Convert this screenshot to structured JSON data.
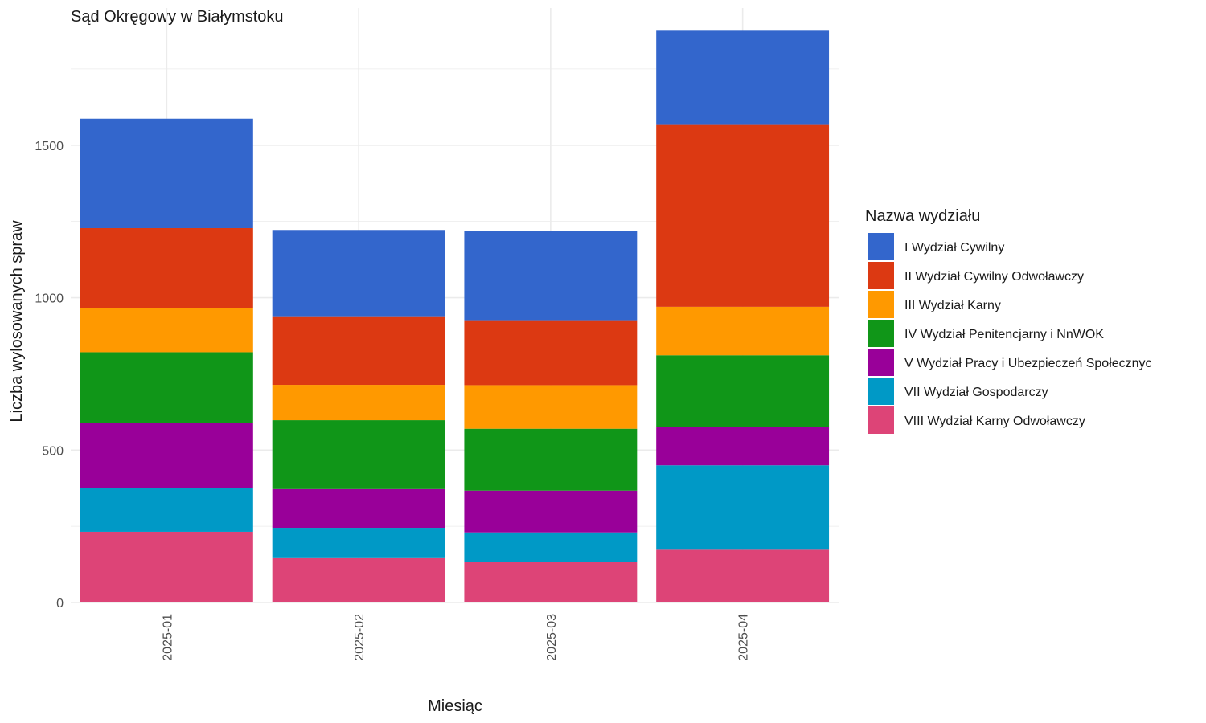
{
  "chart_data": {
    "type": "bar",
    "stacked": true,
    "title": "Sąd Okręgowy w Białymstoku",
    "xlabel": "Miesiąc",
    "ylabel": "Liczba wylosowanych spraw",
    "categories": [
      "2025-01",
      "2025-02",
      "2025-03",
      "2025-04"
    ],
    "ylim": [
      0,
      1950
    ],
    "yticks": [
      0,
      500,
      1000,
      1500
    ],
    "grid": true,
    "legend_title": "Nazwa wydziału",
    "legend_position": "right",
    "series": [
      {
        "name": "VIII Wydział Karny Odwoławczy",
        "color": "#DD4477",
        "values": [
          232,
          148,
          133,
          173
        ]
      },
      {
        "name": "VII Wydział Gospodarczy",
        "color": "#0099C6",
        "values": [
          143,
          97,
          97,
          277
        ]
      },
      {
        "name": "V Wydział Pracy i Ubezpieczeń Społecznyc",
        "color": "#990099",
        "values": [
          213,
          127,
          137,
          126
        ]
      },
      {
        "name": "IV Wydział Penitencjarny i NnWOK",
        "color": "#109618",
        "values": [
          233,
          226,
          203,
          235
        ]
      },
      {
        "name": "III Wydział Karny",
        "color": "#FF9900",
        "values": [
          145,
          116,
          143,
          159
        ]
      },
      {
        "name": "II Wydział Cywilny Odwoławczy",
        "color": "#DC3912",
        "values": [
          262,
          225,
          213,
          599
        ]
      },
      {
        "name": "I Wydział Cywilny",
        "color": "#3366CC",
        "values": [
          359,
          283,
          293,
          309
        ]
      }
    ]
  }
}
